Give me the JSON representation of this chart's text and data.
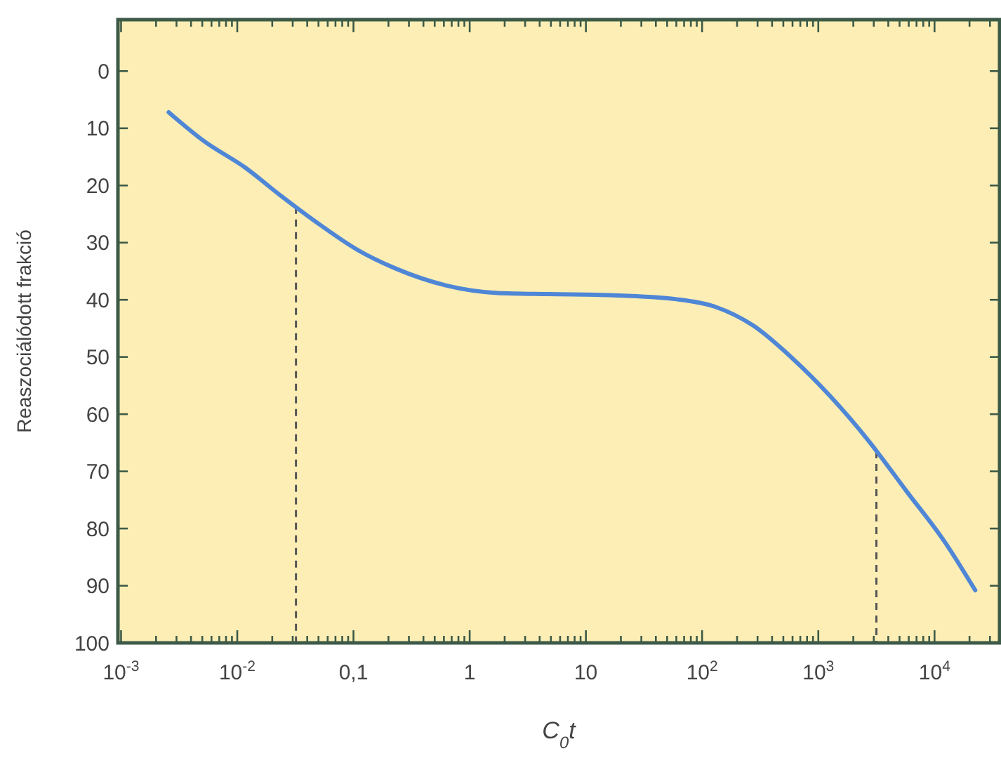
{
  "chart_data": {
    "type": "line",
    "xlabel": "C$_{0}$t",
    "ylabel": "Reaszociálódott frakció",
    "x": [
      0.00257,
      0.00513,
      0.01175,
      0.0234,
      0.0501,
      0.107,
      0.229,
      0.631,
      1.74,
      4.79,
      17.0,
      60.3,
      129,
      275,
      589,
      1259,
      2692,
      5754,
      12300,
      22400
    ],
    "series": [
      {
        "color": "#4f86d6",
        "values": [
          7.2,
          12.2,
          16.9,
          21.7,
          26.7,
          31.2,
          34.5,
          37.5,
          38.8,
          39.0,
          39.2,
          39.9,
          41.2,
          44.5,
          50.1,
          56.8,
          64.6,
          73.5,
          82.4,
          90.8
        ]
      }
    ],
    "log": "x",
    "xlim": [
      0.00094,
      36300
    ],
    "ylim": [
      100,
      -9
    ],
    "xticks": [
      {
        "value": 0.001,
        "label": "10$^{-3}$"
      },
      {
        "value": 0.002,
        "label": null
      },
      {
        "value": 0.003,
        "label": null
      },
      {
        "value": 0.004,
        "label": null
      },
      {
        "value": 0.005,
        "label": null
      },
      {
        "value": 0.006,
        "label": null
      },
      {
        "value": 0.007,
        "label": null
      },
      {
        "value": 0.008,
        "label": null
      },
      {
        "value": 0.009,
        "label": null
      },
      {
        "value": 0.01,
        "label": "10$^{-2}$"
      },
      {
        "value": 0.02,
        "label": null
      },
      {
        "value": 0.03,
        "label": null
      },
      {
        "value": 0.04,
        "label": null
      },
      {
        "value": 0.05,
        "label": null
      },
      {
        "value": 0.06,
        "label": null
      },
      {
        "value": 0.07,
        "label": null
      },
      {
        "value": 0.08,
        "label": null
      },
      {
        "value": 0.09,
        "label": null
      },
      {
        "value": 0.1,
        "label": "0,1"
      },
      {
        "value": 0.2,
        "label": null
      },
      {
        "value": 0.3,
        "label": null
      },
      {
        "value": 0.4,
        "label": null
      },
      {
        "value": 0.5,
        "label": null
      },
      {
        "value": 0.6,
        "label": null
      },
      {
        "value": 0.7,
        "label": null
      },
      {
        "value": 0.8,
        "label": null
      },
      {
        "value": 0.9,
        "label": null
      },
      1,
      {
        "value": 2,
        "label": null
      },
      {
        "value": 3,
        "label": null
      },
      {
        "value": 4,
        "label": null
      },
      {
        "value": 5,
        "label": null
      },
      {
        "value": 6,
        "label": null
      },
      {
        "value": 7,
        "label": null
      },
      {
        "value": 8,
        "label": null
      },
      {
        "value": 9,
        "label": null
      },
      10,
      {
        "value": 20,
        "label": null
      },
      {
        "value": 30,
        "label": null
      },
      {
        "value": 40,
        "label": null
      },
      {
        "value": 50,
        "label": null
      },
      {
        "value": 60,
        "label": null
      },
      {
        "value": 70,
        "label": null
      },
      {
        "value": 80,
        "label": null
      },
      {
        "value": 90,
        "label": null
      },
      {
        "value": 100,
        "label": "10$^{2}$"
      },
      {
        "value": 200,
        "label": null
      },
      {
        "value": 300,
        "label": null
      },
      {
        "value": 400,
        "label": null
      },
      {
        "value": 500,
        "label": null
      },
      {
        "value": 600,
        "label": null
      },
      {
        "value": 700,
        "label": null
      },
      {
        "value": 800,
        "label": null
      },
      {
        "value": 900,
        "label": null
      },
      {
        "value": 1000,
        "label": "10$^{3}$"
      },
      {
        "value": 2000,
        "label": null
      },
      {
        "value": 3000,
        "label": null
      },
      {
        "value": 4000,
        "label": null
      },
      {
        "value": 5000,
        "label": null
      },
      {
        "value": 6000,
        "label": null
      },
      {
        "value": 7000,
        "label": null
      },
      {
        "value": 8000,
        "label": null
      },
      {
        "value": 9000,
        "label": null
      },
      {
        "value": 10000,
        "label": "10$^{4}$"
      },
      {
        "value": 20000,
        "label": null
      },
      {
        "value": 30000,
        "label": null
      }
    ],
    "yticks": [
      0,
      10,
      20,
      30,
      40,
      50,
      60,
      70,
      80,
      90,
      100
    ],
    "ref_lines": [
      {
        "axis": "x",
        "value": 0.032,
        "line_style": "dashed",
        "color": "#555555"
      },
      {
        "axis": "x",
        "value": 3160,
        "line_style": "dashed",
        "color": "#555555"
      }
    ],
    "grid": false,
    "marker": "none",
    "line_style": "solid"
  }
}
